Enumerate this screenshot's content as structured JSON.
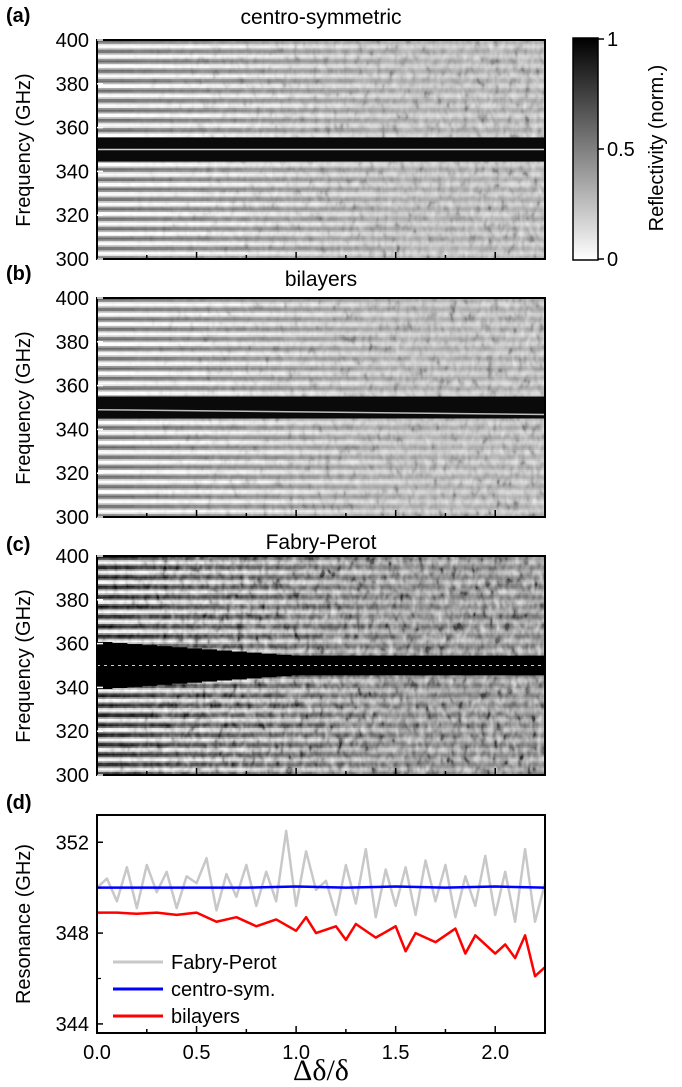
{
  "figure": {
    "xlabel": "Δδ/δ",
    "xticks": [
      "0.0",
      "0.5",
      "1.0",
      "1.5",
      "2.0"
    ],
    "colorbar": {
      "label": "Reflectivity (norm.)",
      "ticks": [
        "1",
        "0.5",
        "0"
      ],
      "colors": {
        "high": "#000000",
        "low": "#ffffff"
      }
    }
  },
  "chart_data": [
    {
      "type": "heatmap",
      "panel_label": "(a)",
      "title": "centro-symmetric",
      "ylabel": "Frequency (GHz)",
      "xlim": [
        0,
        2.25
      ],
      "ylim": [
        300,
        400
      ],
      "yticks": [
        "400",
        "380",
        "360",
        "340",
        "320",
        "300"
      ],
      "value_range": [
        0,
        1
      ],
      "bands": [
        {
          "center": 350,
          "halfwidth": 5.5,
          "center_notch": true,
          "x_start": 0,
          "x_end": 2.25
        }
      ],
      "fringe_period": 4.5
    },
    {
      "type": "heatmap",
      "panel_label": "(b)",
      "title": "bilayers",
      "ylabel": "Frequency (GHz)",
      "xlim": [
        0,
        2.25
      ],
      "ylim": [
        300,
        400
      ],
      "yticks": [
        "400",
        "380",
        "360",
        "340",
        "320",
        "300"
      ],
      "value_range": [
        0,
        1
      ],
      "bands": [
        {
          "center": 350,
          "halfwidth": 5,
          "notch_start": 349,
          "notch_end": 346.8,
          "x_start": 0,
          "x_end": 2.25
        }
      ],
      "fringe_period": 4.5
    },
    {
      "type": "heatmap",
      "panel_label": "(c)",
      "title": "Fabry-Perot",
      "ylabel": "Frequency (GHz)",
      "xlim": [
        0,
        2.25
      ],
      "ylim": [
        300,
        400
      ],
      "yticks": [
        "400",
        "380",
        "360",
        "340",
        "320",
        "300"
      ],
      "value_range": [
        0,
        1
      ],
      "bands": [
        {
          "center": 350,
          "halfwidth_start": 11,
          "halfwidth_end": 4.5,
          "narrow_at": 1.0,
          "center_line": true,
          "x_start": 0,
          "x_end": 2.25
        }
      ],
      "fringe_period": 4.5
    },
    {
      "type": "line",
      "panel_label": "(d)",
      "title": "",
      "xlabel": "Δδ/δ",
      "ylabel": "Resonance (GHz)",
      "xlim": [
        0,
        2.25
      ],
      "ylim": [
        343.6,
        353.2
      ],
      "yticks": [
        352,
        348,
        344
      ],
      "legend_position": "lower-left",
      "series": [
        {
          "name": "Fabry-Perot",
          "color": "#c8c8c8",
          "x": [
            0.0,
            0.05,
            0.1,
            0.15,
            0.2,
            0.25,
            0.3,
            0.35,
            0.4,
            0.45,
            0.5,
            0.55,
            0.6,
            0.65,
            0.7,
            0.75,
            0.8,
            0.85,
            0.9,
            0.95,
            1.0,
            1.05,
            1.1,
            1.15,
            1.2,
            1.25,
            1.3,
            1.35,
            1.4,
            1.45,
            1.5,
            1.55,
            1.6,
            1.65,
            1.7,
            1.75,
            1.8,
            1.85,
            1.9,
            1.95,
            2.0,
            2.05,
            2.1,
            2.15,
            2.2,
            2.25
          ],
          "values": [
            350.0,
            350.4,
            349.4,
            350.9,
            349.1,
            351.0,
            349.8,
            350.7,
            349.1,
            350.5,
            350.2,
            351.3,
            349.0,
            350.6,
            349.6,
            351.0,
            349.2,
            350.7,
            349.4,
            352.5,
            349.2,
            351.6,
            349.9,
            350.3,
            348.8,
            351.0,
            349.3,
            351.7,
            348.7,
            350.8,
            349.2,
            350.9,
            348.8,
            351.2,
            349.4,
            351.0,
            348.7,
            350.5,
            349.2,
            351.4,
            348.8,
            350.7,
            348.5,
            351.7,
            348.5,
            350.2
          ]
        },
        {
          "name": "centro-sym.",
          "color": "#0000ff",
          "x": [
            0.0,
            0.25,
            0.5,
            0.75,
            1.0,
            1.25,
            1.5,
            1.75,
            2.0,
            2.25
          ],
          "values": [
            350.0,
            350.0,
            350.0,
            350.0,
            350.05,
            350.0,
            350.05,
            350.0,
            350.05,
            350.0
          ]
        },
        {
          "name": "bilayers",
          "color": "#ff0000",
          "x": [
            0.0,
            0.1,
            0.2,
            0.3,
            0.4,
            0.5,
            0.6,
            0.7,
            0.8,
            0.9,
            1.0,
            1.05,
            1.1,
            1.2,
            1.25,
            1.3,
            1.4,
            1.5,
            1.55,
            1.6,
            1.7,
            1.8,
            1.85,
            1.9,
            2.0,
            2.05,
            2.1,
            2.15,
            2.2,
            2.25
          ],
          "values": [
            348.9,
            348.9,
            348.85,
            348.9,
            348.8,
            348.9,
            348.5,
            348.7,
            348.3,
            348.6,
            348.1,
            348.7,
            348.0,
            348.3,
            347.7,
            348.4,
            347.8,
            348.3,
            347.2,
            348.0,
            347.6,
            348.2,
            347.1,
            347.9,
            347.1,
            347.5,
            346.9,
            347.9,
            346.1,
            346.5
          ]
        }
      ]
    }
  ]
}
